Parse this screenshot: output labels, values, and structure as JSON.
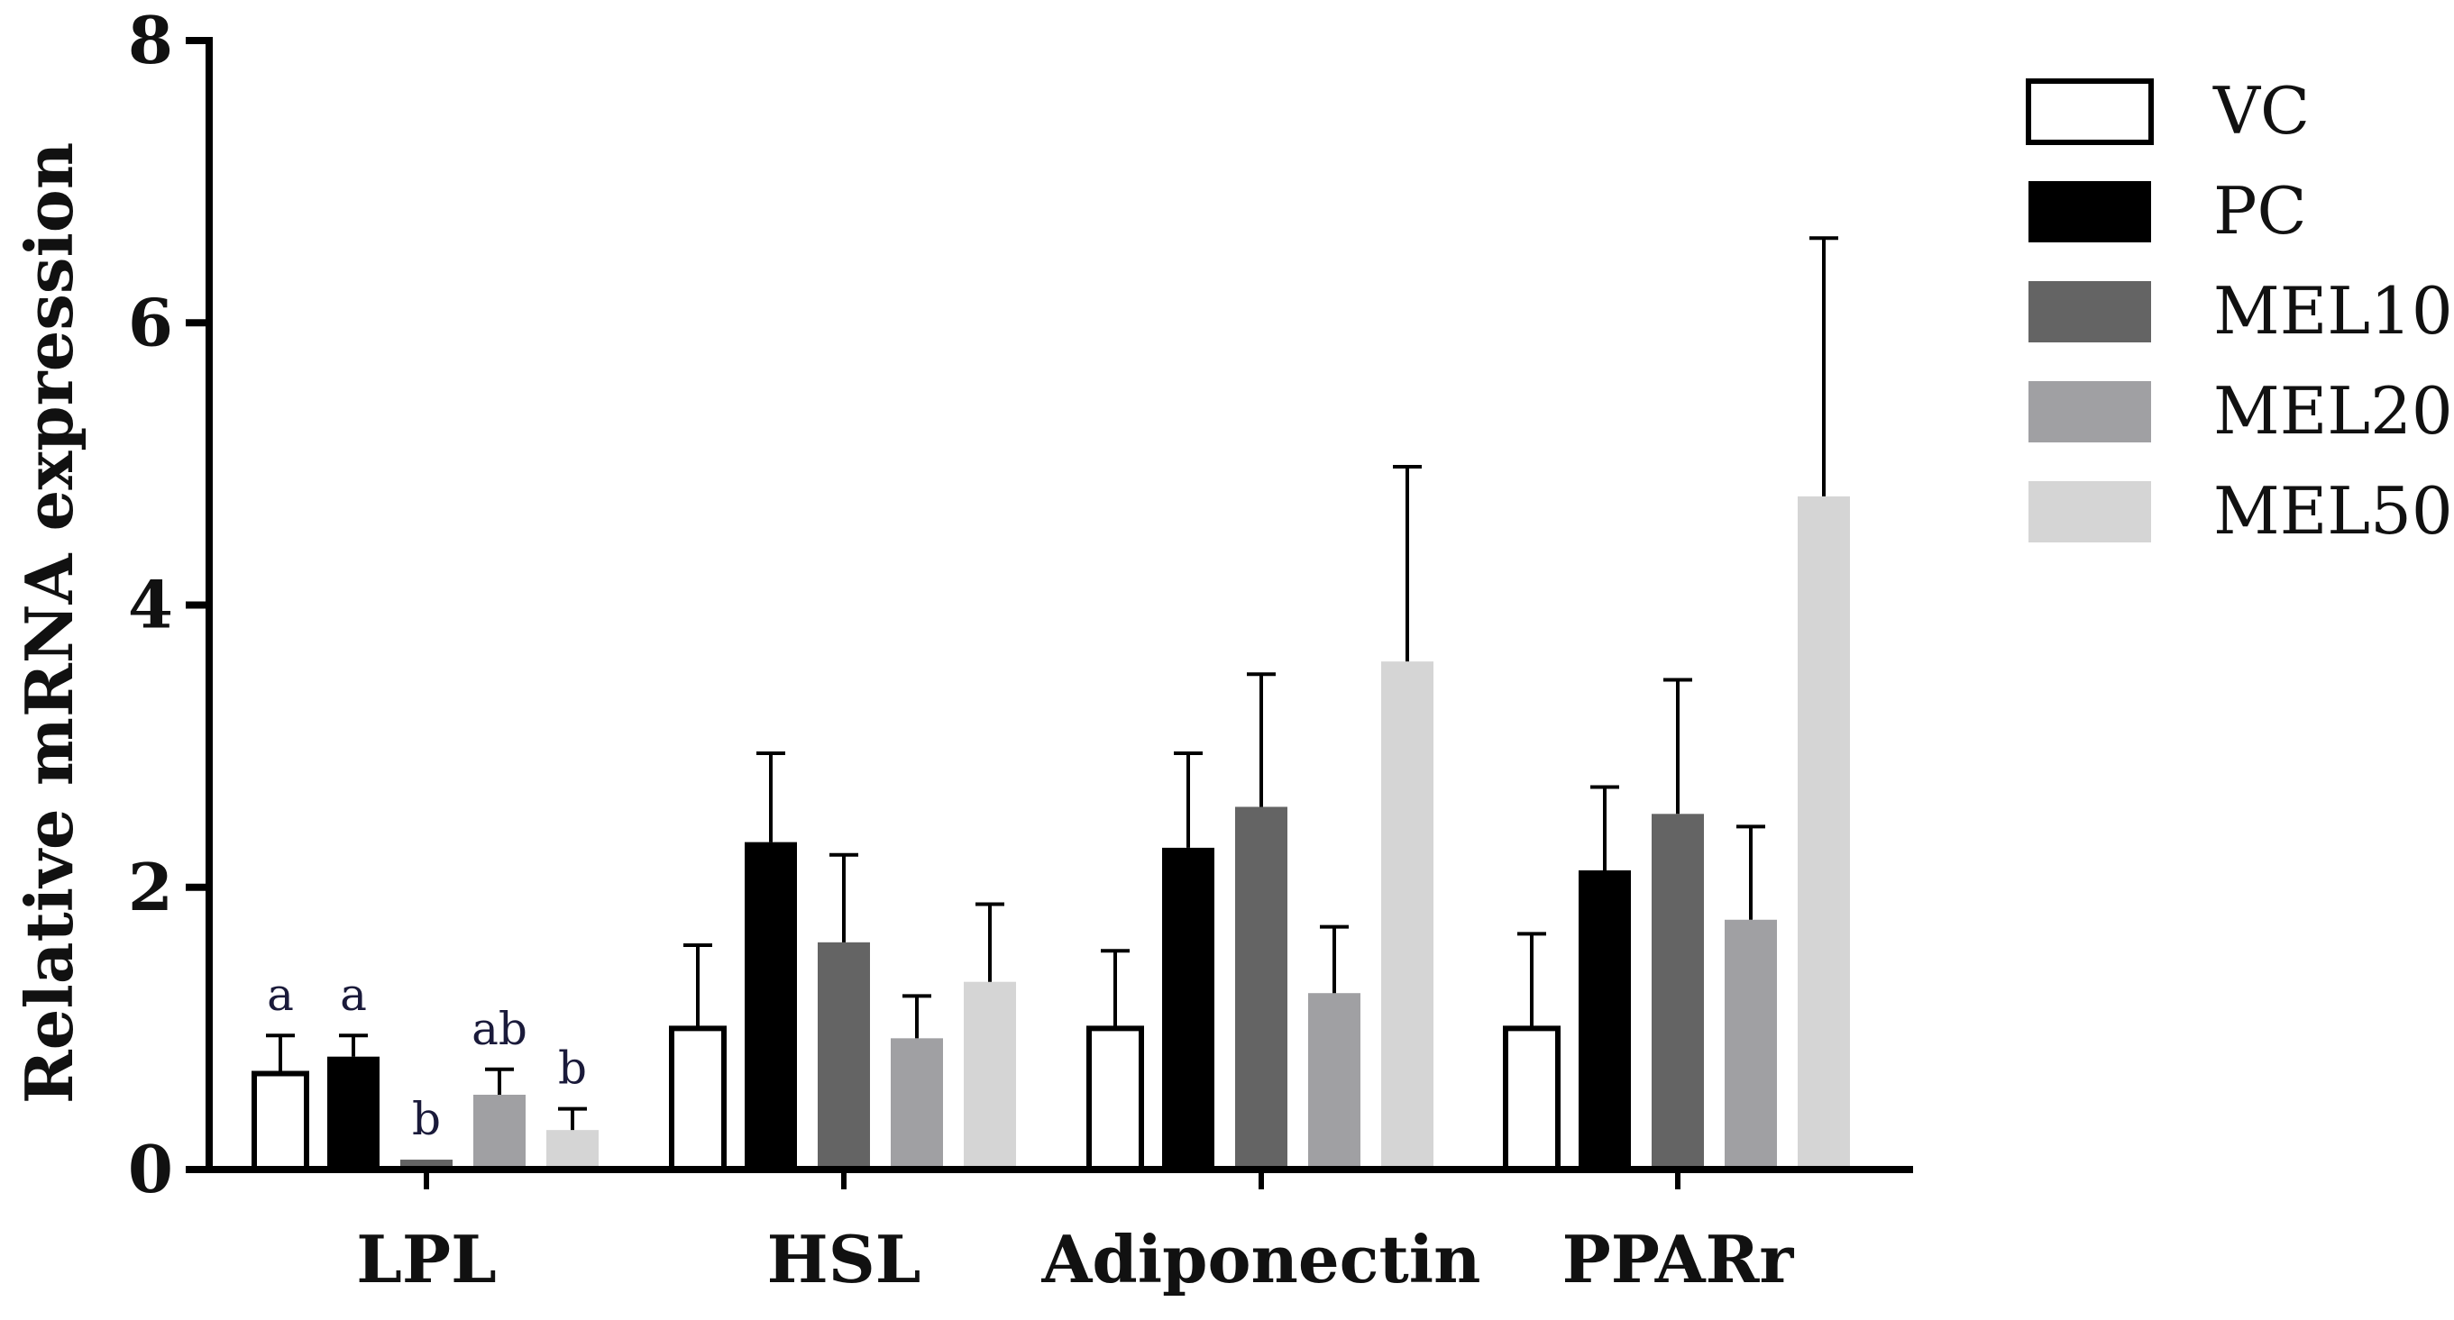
{
  "chart_data": {
    "type": "bar",
    "title": "",
    "xlabel": "",
    "ylabel": "Relative mRNA expression",
    "ylim": [
      0,
      8
    ],
    "yticks": [
      0,
      2,
      4,
      6,
      8
    ],
    "categories": [
      "LPL",
      "HSL",
      "Adiponectin",
      "PPARr"
    ],
    "legend_position": "top-right",
    "series": [
      {
        "name": "VC",
        "color": "#ffffff",
        "values": [
          0.68,
          1.0,
          1.0,
          1.0
        ],
        "errors": [
          0.27,
          0.59,
          0.55,
          0.67
        ],
        "labels": [
          "a",
          "",
          "",
          ""
        ]
      },
      {
        "name": "PC",
        "color": "#000000",
        "values": [
          0.8,
          2.32,
          2.28,
          2.12
        ],
        "errors": [
          0.15,
          0.63,
          0.67,
          0.59
        ],
        "labels": [
          "a",
          "",
          "",
          ""
        ]
      },
      {
        "name": "MEL10",
        "color": "#646464",
        "values": [
          0.07,
          1.61,
          2.57,
          2.52
        ],
        "errors": [
          0.0,
          0.62,
          0.94,
          0.95
        ],
        "labels": [
          "b",
          "",
          "",
          ""
        ]
      },
      {
        "name": "MEL20",
        "color": "#a0a0a3",
        "values": [
          0.53,
          0.93,
          1.25,
          1.77
        ],
        "errors": [
          0.18,
          0.3,
          0.47,
          0.66
        ],
        "labels": [
          "ab",
          "",
          "",
          ""
        ]
      },
      {
        "name": "MEL50",
        "color": "#d5d5d5",
        "values": [
          0.28,
          1.33,
          3.6,
          4.77
        ],
        "errors": [
          0.15,
          0.55,
          1.38,
          1.83
        ],
        "labels": [
          "b",
          "",
          "",
          ""
        ]
      }
    ]
  }
}
